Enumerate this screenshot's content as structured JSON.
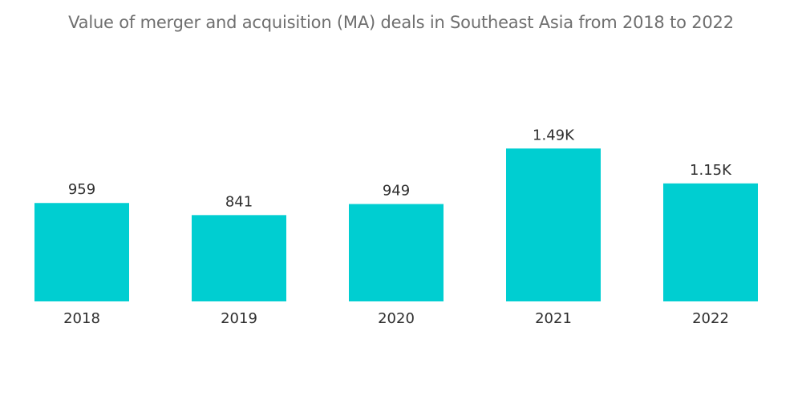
{
  "chart_data": {
    "type": "bar",
    "title": "Value of merger and acquisition (MA) deals in Southeast Asia from 2018 to 2022",
    "xlabel": "",
    "ylabel": "",
    "categories": [
      "2018",
      "2019",
      "2020",
      "2021",
      "2022"
    ],
    "values": [
      959,
      841,
      949,
      1490,
      1150
    ],
    "value_labels": [
      "959",
      "841",
      "949",
      "1.49K",
      "1.15K"
    ],
    "ylim": [
      0,
      1500
    ],
    "grid": false,
    "legend": "none",
    "colors": {
      "bar": "#00ced1",
      "text": "#2e2e2e",
      "title": "#6f6f6f"
    }
  }
}
